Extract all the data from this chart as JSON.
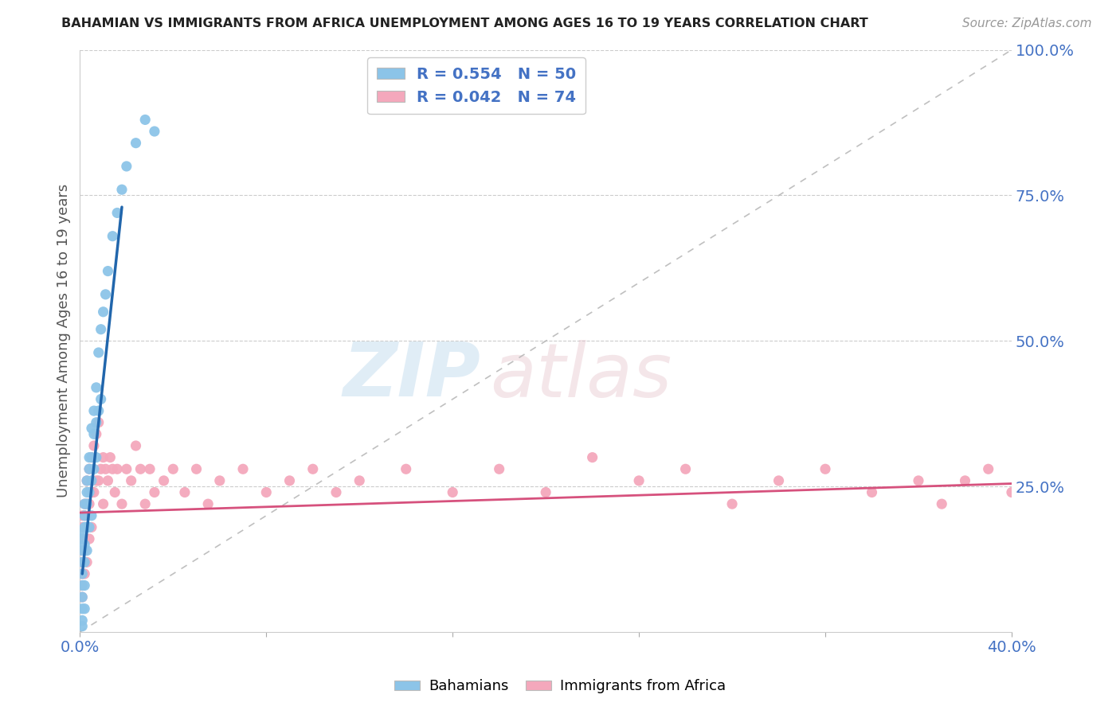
{
  "title": "BAHAMIAN VS IMMIGRANTS FROM AFRICA UNEMPLOYMENT AMONG AGES 16 TO 19 YEARS CORRELATION CHART",
  "source": "Source: ZipAtlas.com",
  "ylabel": "Unemployment Among Ages 16 to 19 years",
  "xlim": [
    0.0,
    0.4
  ],
  "ylim": [
    0.0,
    1.0
  ],
  "bahamian_color": "#8cc4e8",
  "africa_color": "#f4a8bc",
  "line_blue": "#2166ac",
  "line_pink": "#d6517d",
  "watermark_zip": "ZIP",
  "watermark_atlas": "atlas",
  "legend_r_bahamian": "R = 0.554",
  "legend_n_bahamian": "N = 50",
  "legend_r_africa": "R = 0.042",
  "legend_n_africa": "N = 74",
  "bah_x": [
    0.001,
    0.001,
    0.001,
    0.001,
    0.001,
    0.001,
    0.001,
    0.001,
    0.001,
    0.001,
    0.002,
    0.002,
    0.002,
    0.002,
    0.002,
    0.002,
    0.002,
    0.003,
    0.003,
    0.003,
    0.003,
    0.003,
    0.004,
    0.004,
    0.004,
    0.004,
    0.005,
    0.005,
    0.005,
    0.005,
    0.006,
    0.006,
    0.006,
    0.007,
    0.007,
    0.007,
    0.008,
    0.008,
    0.009,
    0.009,
    0.01,
    0.011,
    0.012,
    0.014,
    0.016,
    0.018,
    0.02,
    0.024,
    0.028,
    0.032
  ],
  "bah_y": [
    0.17,
    0.16,
    0.14,
    0.12,
    0.1,
    0.08,
    0.06,
    0.04,
    0.02,
    0.01,
    0.22,
    0.2,
    0.18,
    0.15,
    0.12,
    0.08,
    0.04,
    0.26,
    0.24,
    0.22,
    0.18,
    0.14,
    0.3,
    0.28,
    0.24,
    0.18,
    0.35,
    0.3,
    0.26,
    0.2,
    0.38,
    0.34,
    0.28,
    0.42,
    0.36,
    0.3,
    0.48,
    0.38,
    0.52,
    0.4,
    0.55,
    0.58,
    0.62,
    0.68,
    0.72,
    0.76,
    0.8,
    0.84,
    0.88,
    0.86
  ],
  "afr_x": [
    0.001,
    0.001,
    0.001,
    0.001,
    0.001,
    0.001,
    0.001,
    0.001,
    0.002,
    0.002,
    0.002,
    0.002,
    0.002,
    0.003,
    0.003,
    0.003,
    0.003,
    0.004,
    0.004,
    0.004,
    0.005,
    0.005,
    0.005,
    0.006,
    0.006,
    0.007,
    0.007,
    0.008,
    0.008,
    0.009,
    0.01,
    0.01,
    0.011,
    0.012,
    0.013,
    0.014,
    0.015,
    0.016,
    0.018,
    0.02,
    0.022,
    0.024,
    0.026,
    0.028,
    0.03,
    0.032,
    0.036,
    0.04,
    0.045,
    0.05,
    0.055,
    0.06,
    0.07,
    0.08,
    0.09,
    0.1,
    0.11,
    0.12,
    0.14,
    0.16,
    0.18,
    0.2,
    0.22,
    0.24,
    0.26,
    0.28,
    0.3,
    0.32,
    0.34,
    0.36,
    0.37,
    0.38,
    0.39,
    0.4
  ],
  "afr_y": [
    0.2,
    0.18,
    0.16,
    0.14,
    0.12,
    0.1,
    0.08,
    0.06,
    0.22,
    0.2,
    0.18,
    0.14,
    0.1,
    0.26,
    0.22,
    0.18,
    0.12,
    0.28,
    0.22,
    0.16,
    0.3,
    0.24,
    0.18,
    0.32,
    0.24,
    0.34,
    0.26,
    0.36,
    0.26,
    0.28,
    0.3,
    0.22,
    0.28,
    0.26,
    0.3,
    0.28,
    0.24,
    0.28,
    0.22,
    0.28,
    0.26,
    0.32,
    0.28,
    0.22,
    0.28,
    0.24,
    0.26,
    0.28,
    0.24,
    0.28,
    0.22,
    0.26,
    0.28,
    0.24,
    0.26,
    0.28,
    0.24,
    0.26,
    0.28,
    0.24,
    0.28,
    0.24,
    0.3,
    0.26,
    0.28,
    0.22,
    0.26,
    0.28,
    0.24,
    0.26,
    0.22,
    0.26,
    0.28,
    0.24
  ]
}
